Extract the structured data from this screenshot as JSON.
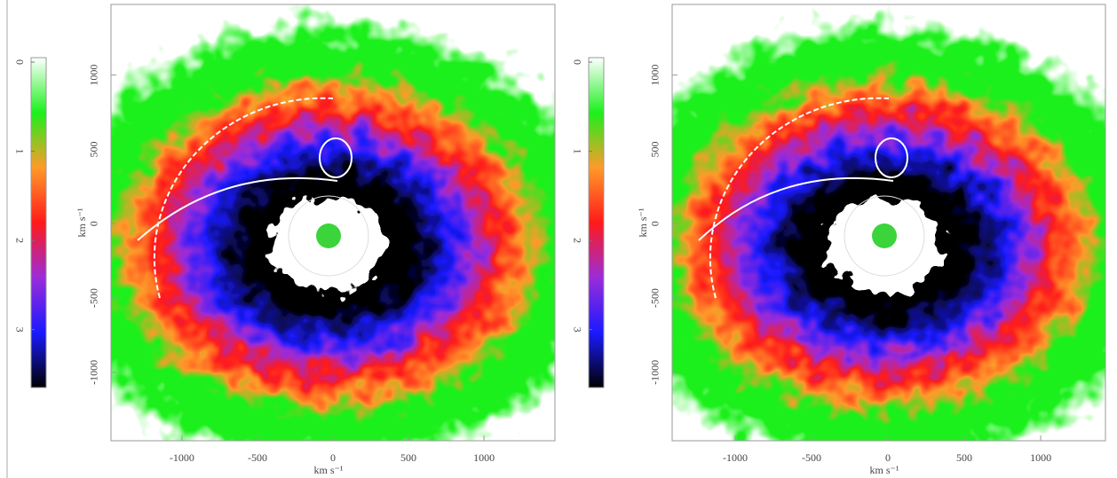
{
  "chart_data": [
    {
      "type": "image",
      "xlabel": "km s⁻¹",
      "ylabel": "km s⁻¹",
      "xlim": [
        -1470,
        1470
      ],
      "xticks": [
        -1000,
        -500,
        0,
        500,
        1000
      ],
      "ylim": [
        -1460,
        1475
      ],
      "yticks": [
        -1000,
        -500,
        0,
        500,
        1000
      ],
      "clim": [
        3.65,
        -0.05
      ],
      "cticks": [
        0,
        1,
        2,
        3
      ],
      "colors": [
        "#000000",
        "#1a1aff",
        "#9b2cd9",
        "#ff1a1a",
        "#ff9a2a",
        "#1cf01c",
        "#ffffff"
      ]
    },
    {
      "type": "image",
      "xlabel": "km s⁻¹",
      "ylabel": "km s⁻¹",
      "xlim": [
        -1413,
        1424
      ],
      "xticks": [
        -1000,
        -500,
        0,
        500,
        1000
      ],
      "ylim": [
        -1460,
        1475
      ],
      "yticks": [
        -1000,
        -500,
        0,
        500,
        1000
      ],
      "clim": [
        3.65,
        -0.05
      ],
      "cticks": [
        0,
        1,
        2,
        3
      ],
      "colors": [
        "#000000",
        "#1a1aff",
        "#9b2cd9",
        "#ff1a1a",
        "#ff9a2a",
        "#1cf01c",
        "#ffffff"
      ]
    }
  ]
}
